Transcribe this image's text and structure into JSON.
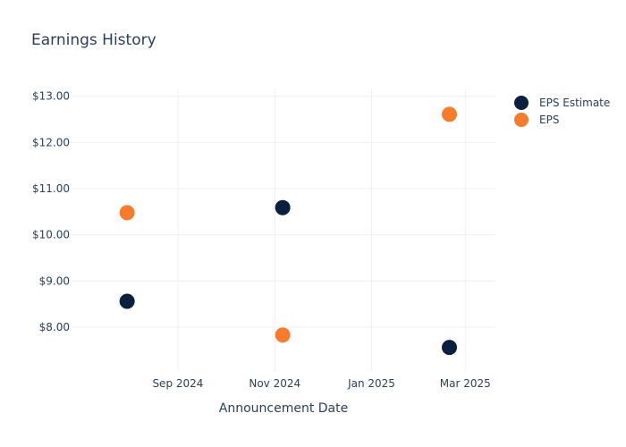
{
  "chart_data": {
    "type": "scatter",
    "title": "Earnings History",
    "xlabel": "Announcement Date",
    "ylabel": "",
    "x_axis_type": "date",
    "xlim": [
      "2024-06-26",
      "2025-03-20"
    ],
    "ylim": [
      7.05,
      13.15
    ],
    "x_ticks": [
      {
        "date": "2024-09-01",
        "label": "Sep 2024"
      },
      {
        "date": "2024-11-01",
        "label": "Nov 2024"
      },
      {
        "date": "2025-01-01",
        "label": "Jan 2025"
      },
      {
        "date": "2025-03-01",
        "label": "Mar 2025"
      }
    ],
    "y_ticks": [
      {
        "value": 8,
        "label": "$8.00"
      },
      {
        "value": 9,
        "label": "$9.00"
      },
      {
        "value": 10,
        "label": "$10.00"
      },
      {
        "value": 11,
        "label": "$11.00"
      },
      {
        "value": 12,
        "label": "$12.00"
      },
      {
        "value": 13,
        "label": "$13.00"
      }
    ],
    "grid": true,
    "legend_position": "top-right",
    "series": [
      {
        "name": "EPS Estimate",
        "color": "#0b1f3f",
        "points": [
          {
            "x": "2024-07-31",
            "y": 8.56
          },
          {
            "x": "2024-11-06",
            "y": 10.59
          },
          {
            "x": "2025-02-19",
            "y": 7.56
          }
        ]
      },
      {
        "name": "EPS",
        "color": "#f57c2c",
        "points": [
          {
            "x": "2024-07-31",
            "y": 10.48
          },
          {
            "x": "2024-11-06",
            "y": 7.83
          },
          {
            "x": "2025-02-19",
            "y": 12.61
          }
        ]
      }
    ]
  }
}
